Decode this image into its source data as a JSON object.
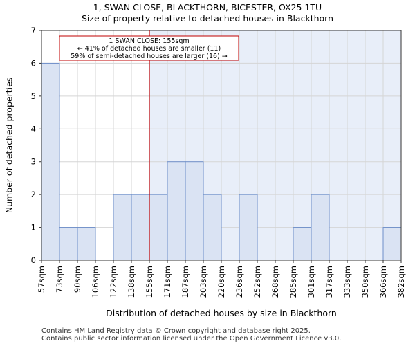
{
  "chart_data": {
    "type": "bar",
    "title_line1": "1, SWAN CLOSE, BLACKTHORN, BICESTER, OX25 1TU",
    "title_line2": "Size of property relative to detached houses in Blackthorn",
    "xlabel": "Distribution of detached houses by size in Blackthorn",
    "ylabel": "Number of detached properties",
    "x_ticks": [
      "57sqm",
      "73sqm",
      "90sqm",
      "106sqm",
      "122sqm",
      "138sqm",
      "155sqm",
      "171sqm",
      "187sqm",
      "203sqm",
      "220sqm",
      "236sqm",
      "252sqm",
      "268sqm",
      "285sqm",
      "301sqm",
      "317sqm",
      "333sqm",
      "350sqm",
      "366sqm",
      "382sqm"
    ],
    "values": [
      6,
      1,
      1,
      0,
      2,
      2,
      2,
      3,
      3,
      2,
      0,
      2,
      0,
      0,
      1,
      2,
      0,
      0,
      0,
      1
    ],
    "y_ticks": [
      0,
      1,
      2,
      3,
      4,
      5,
      6,
      7
    ],
    "ylim": [
      0,
      7
    ],
    "marker_value_bin_index": 6,
    "annotation": {
      "line1": "1 SWAN CLOSE: 155sqm",
      "line2": "← 41% of detached houses are smaller (11)",
      "line3": "59% of semi-detached houses are larger (16) →"
    },
    "colors": {
      "bar_fill": "#dae3f3",
      "bar_stroke": "#6e8fc9",
      "marker": "#c00000",
      "highlight_bg": "#e8eef9"
    }
  },
  "footer": {
    "line1": "Contains HM Land Registry data © Crown copyright and database right 2025.",
    "line2": "Contains public sector information licensed under the Open Government Licence v3.0."
  }
}
